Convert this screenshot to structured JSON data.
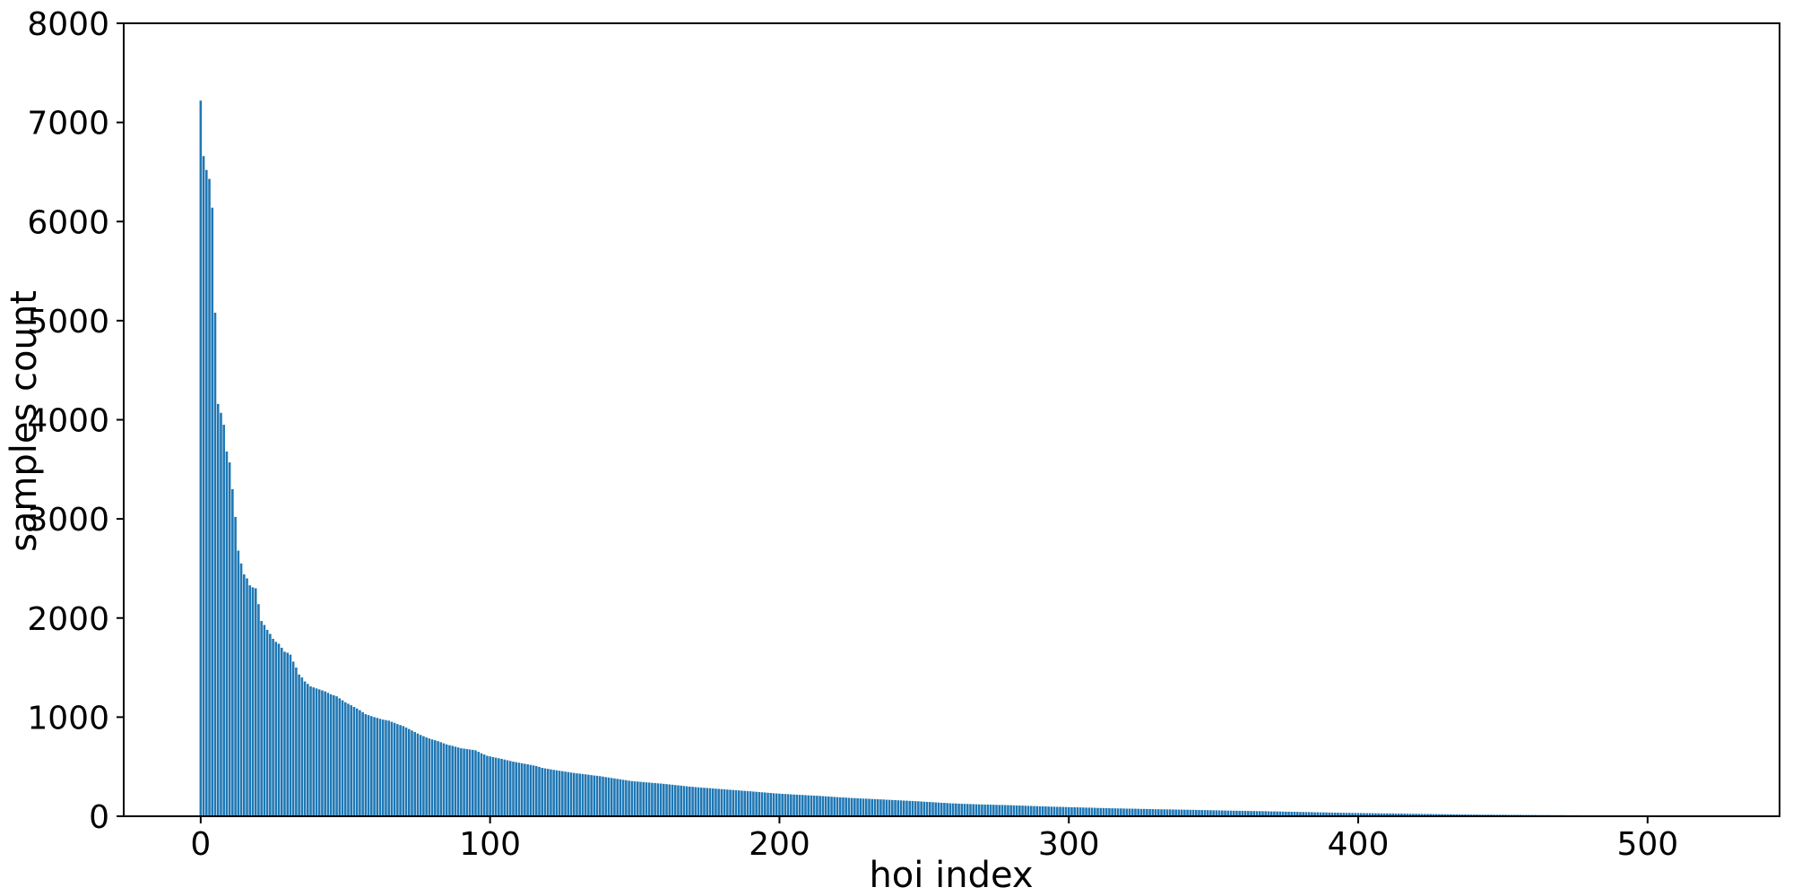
{
  "page": {
    "background_color": "#ffffff",
    "text_color": "#000000"
  },
  "chart_data": {
    "type": "bar",
    "title": "",
    "xlabel": "hoi index",
    "ylabel": "samples count",
    "xlim": [
      -26.6,
      545.6
    ],
    "ylim": [
      0,
      8000
    ],
    "xticks": [
      0,
      100,
      200,
      300,
      400,
      500
    ],
    "yticks": [
      0,
      1000,
      2000,
      3000,
      4000,
      5000,
      6000,
      7000,
      8000
    ],
    "grid": false,
    "legend": "none",
    "bar_color": "#1f77b4",
    "bar_width": 0.8,
    "n_bars": 519,
    "description": "Long-tail distribution of sample counts per HOI class index, sorted descending; values below are (index, samples_count) anchor points read from the plot, linearly interpolated for indices in between.",
    "anchors": [
      [
        0,
        7220
      ],
      [
        1,
        6660
      ],
      [
        2,
        6520
      ],
      [
        3,
        6430
      ],
      [
        4,
        6140
      ],
      [
        5,
        5080
      ],
      [
        6,
        4160
      ],
      [
        7,
        4070
      ],
      [
        8,
        3950
      ],
      [
        9,
        3680
      ],
      [
        10,
        3570
      ],
      [
        11,
        3300
      ],
      [
        12,
        3020
      ],
      [
        13,
        2680
      ],
      [
        14,
        2550
      ],
      [
        15,
        2440
      ],
      [
        16,
        2400
      ],
      [
        17,
        2330
      ],
      [
        18,
        2310
      ],
      [
        19,
        2300
      ],
      [
        20,
        2140
      ],
      [
        21,
        1970
      ],
      [
        22,
        1930
      ],
      [
        23,
        1880
      ],
      [
        24,
        1840
      ],
      [
        25,
        1790
      ],
      [
        26,
        1760
      ],
      [
        27,
        1740
      ],
      [
        28,
        1700
      ],
      [
        29,
        1660
      ],
      [
        30,
        1650
      ],
      [
        31,
        1630
      ],
      [
        32,
        1560
      ],
      [
        33,
        1500
      ],
      [
        34,
        1430
      ],
      [
        35,
        1400
      ],
      [
        36,
        1360
      ],
      [
        38,
        1310
      ],
      [
        40,
        1290
      ],
      [
        43,
        1260
      ],
      [
        45,
        1230
      ],
      [
        47,
        1210
      ],
      [
        50,
        1150
      ],
      [
        52,
        1120
      ],
      [
        55,
        1070
      ],
      [
        57,
        1030
      ],
      [
        60,
        1000
      ],
      [
        63,
        975
      ],
      [
        65,
        965
      ],
      [
        68,
        930
      ],
      [
        70,
        910
      ],
      [
        72,
        880
      ],
      [
        74,
        850
      ],
      [
        76,
        820
      ],
      [
        78,
        795
      ],
      [
        80,
        775
      ],
      [
        82,
        758
      ],
      [
        85,
        725
      ],
      [
        88,
        702
      ],
      [
        90,
        686
      ],
      [
        93,
        674
      ],
      [
        95,
        665
      ],
      [
        97,
        635
      ],
      [
        99,
        610
      ],
      [
        101,
        597
      ],
      [
        104,
        579
      ],
      [
        108,
        551
      ],
      [
        112,
        529
      ],
      [
        116,
        507
      ],
      [
        118,
        488
      ],
      [
        122,
        468
      ],
      [
        126,
        450
      ],
      [
        129,
        437
      ],
      [
        134,
        419
      ],
      [
        139,
        400
      ],
      [
        144,
        377
      ],
      [
        149,
        355
      ],
      [
        154,
        342
      ],
      [
        159,
        330
      ],
      [
        164,
        315
      ],
      [
        169,
        299
      ],
      [
        174,
        287
      ],
      [
        179,
        276
      ],
      [
        184,
        265
      ],
      [
        189,
        254
      ],
      [
        194,
        242
      ],
      [
        199,
        230
      ],
      [
        204,
        221
      ],
      [
        209,
        213
      ],
      [
        214,
        205
      ],
      [
        219,
        195
      ],
      [
        224,
        186
      ],
      [
        229,
        178
      ],
      [
        234,
        172
      ],
      [
        239,
        164
      ],
      [
        244,
        157
      ],
      [
        249,
        149
      ],
      [
        254,
        140
      ],
      [
        259,
        131
      ],
      [
        264,
        125
      ],
      [
        269,
        120
      ],
      [
        274,
        116
      ],
      [
        279,
        112
      ],
      [
        284,
        107
      ],
      [
        289,
        102
      ],
      [
        294,
        97
      ],
      [
        299,
        93
      ],
      [
        304,
        89
      ],
      [
        309,
        85
      ],
      [
        314,
        81
      ],
      [
        319,
        78
      ],
      [
        324,
        75
      ],
      [
        329,
        72
      ],
      [
        334,
        69
      ],
      [
        339,
        67
      ],
      [
        344,
        64
      ],
      [
        349,
        61
      ],
      [
        354,
        58
      ],
      [
        359,
        55
      ],
      [
        364,
        53
      ],
      [
        369,
        50
      ],
      [
        374,
        47
      ],
      [
        379,
        44
      ],
      [
        384,
        41
      ],
      [
        389,
        38
      ],
      [
        394,
        35
      ],
      [
        399,
        33
      ],
      [
        404,
        31
      ],
      [
        409,
        29
      ],
      [
        414,
        27
      ],
      [
        419,
        25
      ],
      [
        424,
        23
      ],
      [
        429,
        21
      ],
      [
        434,
        19
      ],
      [
        439,
        17
      ],
      [
        444,
        16
      ],
      [
        449,
        15
      ],
      [
        454,
        14
      ],
      [
        459,
        13
      ],
      [
        464,
        12
      ],
      [
        469,
        11
      ],
      [
        474,
        10
      ],
      [
        479,
        9
      ],
      [
        484,
        8
      ],
      [
        489,
        7
      ],
      [
        494,
        6
      ],
      [
        499,
        5
      ],
      [
        504,
        4
      ],
      [
        509,
        3
      ],
      [
        514,
        3
      ],
      [
        518,
        2
      ]
    ]
  }
}
